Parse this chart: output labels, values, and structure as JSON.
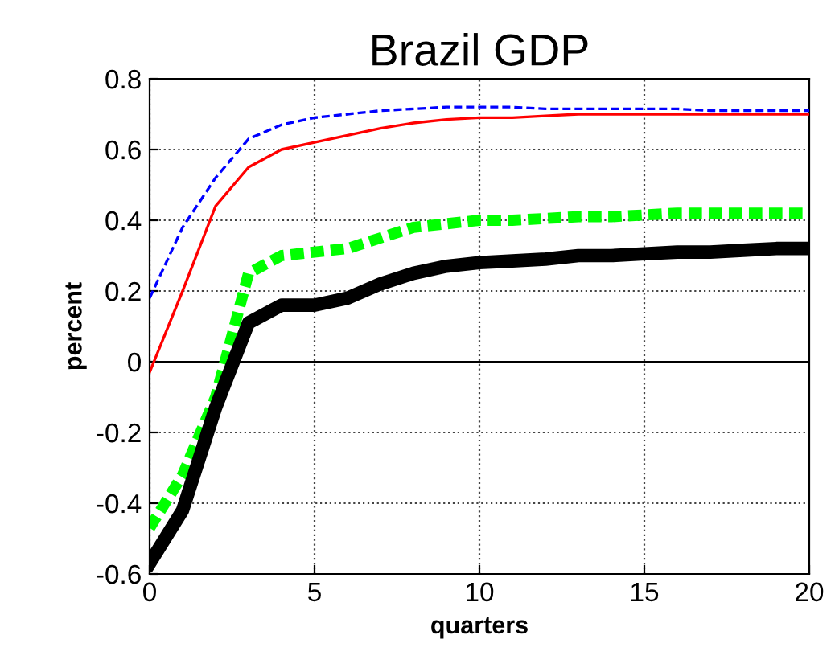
{
  "chart_data": {
    "type": "line",
    "title": "Brazil GDP",
    "xlabel": "quarters",
    "ylabel": "percent",
    "x": [
      0,
      1,
      2,
      3,
      4,
      5,
      6,
      7,
      8,
      9,
      10,
      11,
      12,
      13,
      14,
      15,
      16,
      17,
      18,
      19,
      20
    ],
    "series": [
      {
        "color": "#0000ff",
        "line_style": "dashed",
        "values": [
          0.18,
          0.38,
          0.52,
          0.63,
          0.67,
          0.69,
          0.7,
          0.71,
          0.715,
          0.72,
          0.72,
          0.72,
          0.715,
          0.715,
          0.715,
          0.715,
          0.715,
          0.71,
          0.71,
          0.71,
          0.71
        ]
      },
      {
        "color": "#ff0000",
        "line_style": "solid",
        "values": [
          -0.03,
          0.2,
          0.44,
          0.55,
          0.6,
          0.62,
          0.64,
          0.66,
          0.675,
          0.685,
          0.69,
          0.69,
          0.695,
          0.7,
          0.7,
          0.7,
          0.7,
          0.7,
          0.7,
          0.7,
          0.7
        ]
      },
      {
        "color": "#00ff00",
        "line_style": "dashed",
        "values": [
          -0.47,
          -0.32,
          -0.1,
          0.25,
          0.3,
          0.31,
          0.32,
          0.35,
          0.38,
          0.39,
          0.4,
          0.4,
          0.405,
          0.41,
          0.41,
          0.415,
          0.42,
          0.42,
          0.42,
          0.42,
          0.42
        ]
      },
      {
        "color": "#000000",
        "line_style": "solid",
        "values": [
          -0.57,
          -0.42,
          -0.13,
          0.11,
          0.16,
          0.16,
          0.18,
          0.22,
          0.25,
          0.27,
          0.28,
          0.285,
          0.29,
          0.3,
          0.3,
          0.305,
          0.31,
          0.31,
          0.315,
          0.32,
          0.32
        ]
      }
    ],
    "xlim": [
      0,
      20
    ],
    "xticks": [
      0,
      5,
      10,
      15,
      20
    ],
    "ylim": [
      -0.6,
      0.8
    ],
    "yticks": [
      -0.6,
      -0.4,
      -0.2,
      0,
      0.2,
      0.4,
      0.6,
      0.8
    ],
    "ref_lines": [
      {
        "axis": "y",
        "value": 0,
        "color": "#000000",
        "line_style": "solid"
      }
    ],
    "grid": true
  }
}
